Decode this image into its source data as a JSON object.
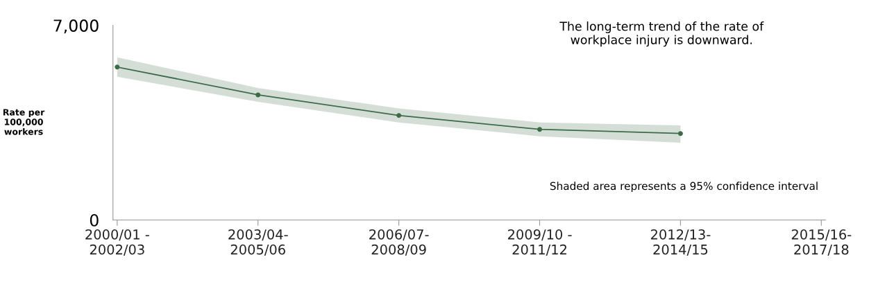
{
  "chart_data": {
    "type": "line",
    "ylabel": "Rate per\n100,000\nworkers",
    "categories": [
      "2000/01 -\n2002/03",
      "2003/04-\n2005/06",
      "2006/07-\n2008/09",
      "2009/10 -\n2011/12",
      "2012/13-\n2014/15",
      "2015/16-\n2017/18"
    ],
    "series": [
      {
        "color": "#3d6b47",
        "values": [
          5500,
          4500,
          3760,
          3260,
          3110,
          null
        ],
        "lower": [
          5150,
          4250,
          3510,
          3010,
          2780,
          null
        ],
        "upper": [
          5850,
          4750,
          4010,
          3510,
          3400,
          null
        ]
      }
    ],
    "ylim": [
      0,
      7000
    ],
    "yticks": [
      0,
      {
        "value": 7000,
        "label": "7,000"
      }
    ],
    "marker": "circle",
    "line_style": "solid",
    "grid": false,
    "legend": false,
    "annotations": [
      "The long-term trend of the rate of\nworkplace injury is downward.",
      "Shaded area represents a 95% confidence interval"
    ]
  }
}
